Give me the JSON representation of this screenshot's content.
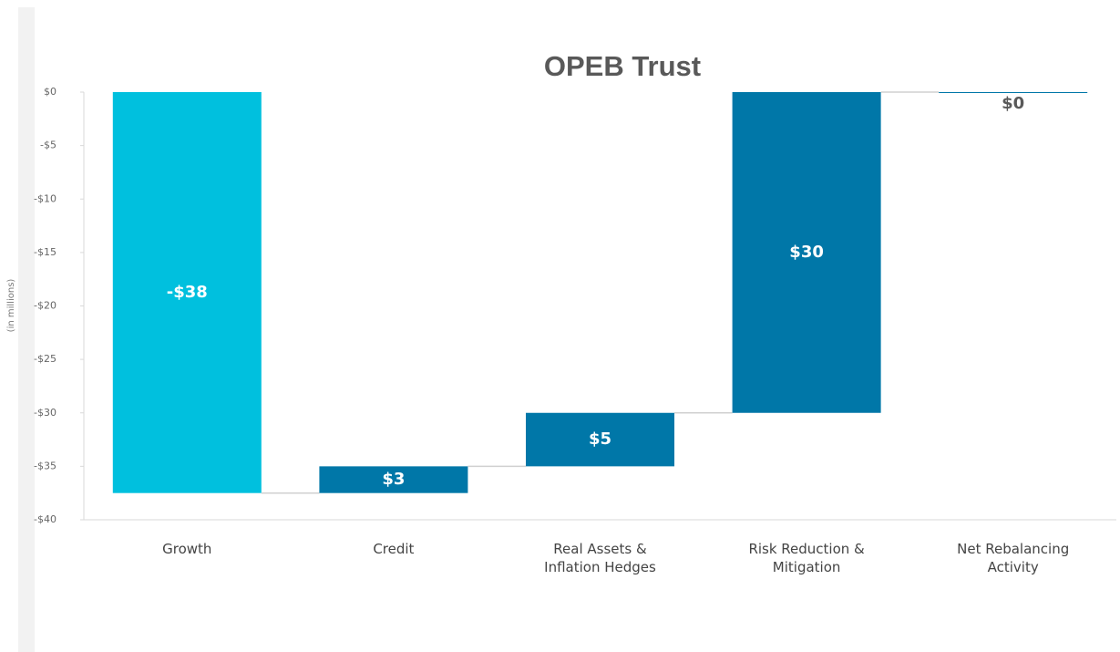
{
  "chart_data": {
    "type": "waterfall",
    "title": "OPEB Trust",
    "y_label": "(in millions)",
    "categories": [
      "Growth",
      "Credit",
      "Real Assets &\nInflation Hedges",
      "Risk Reduction &\nMitigation",
      "Net Rebalancing\nActivity"
    ],
    "values": [
      -37.5,
      2.5,
      5,
      30,
      0
    ],
    "value_labels": [
      "-$38",
      "$3",
      "$5",
      "$30",
      "$0"
    ],
    "colors": [
      "#00c0de",
      "#0077a8",
      "#0077a8",
      "#0077a8",
      "#0077a8"
    ],
    "ylim": [
      -40,
      0
    ],
    "yticks": [
      {
        "value": 0,
        "label": "$0"
      },
      {
        "value": -5,
        "label": "-$5"
      },
      {
        "value": -10,
        "label": "-$10"
      },
      {
        "value": -15,
        "label": "-$15"
      },
      {
        "value": -20,
        "label": "-$20"
      },
      {
        "value": -25,
        "label": "-$25"
      },
      {
        "value": -30,
        "label": "-$30"
      },
      {
        "value": -35,
        "label": "-$35"
      },
      {
        "value": -40,
        "label": "-$40"
      }
    ],
    "grid": false
  }
}
